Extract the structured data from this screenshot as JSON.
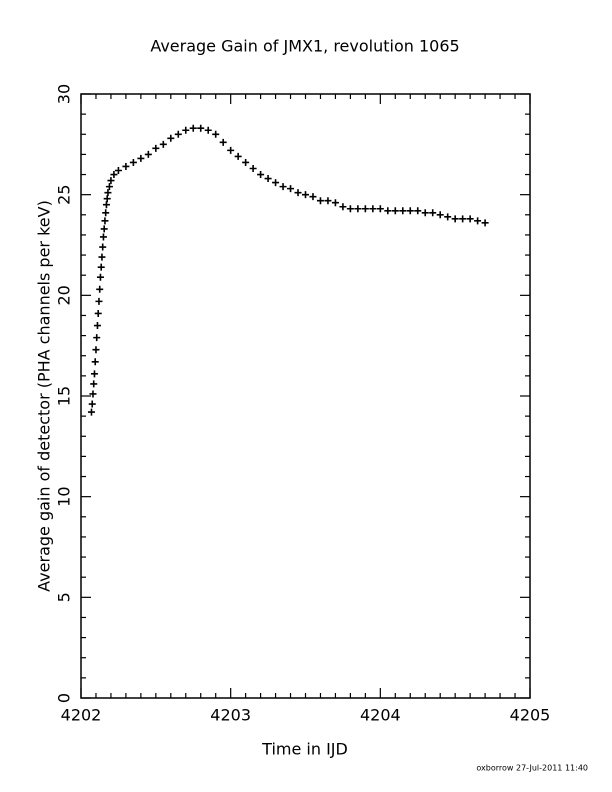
{
  "chart_data": {
    "type": "scatter",
    "title": "Average Gain of JMX1, revolution 1065",
    "xlabel": "Time in IJD",
    "ylabel": "Average gain of detector (PHA channels per keV)",
    "footer": "oxborrow 27-Jul-2011 11:40",
    "xlim": [
      4202,
      4205
    ],
    "xticks": [
      4202,
      4203,
      4204,
      4205
    ],
    "ylim": [
      0,
      30
    ],
    "yticks": [
      0,
      5,
      10,
      15,
      20,
      25,
      30
    ],
    "marker": "plus",
    "color": "#000000",
    "x": [
      4202.07,
      4202.075,
      4202.08,
      4202.085,
      4202.09,
      4202.095,
      4202.1,
      4202.105,
      4202.11,
      4202.115,
      4202.12,
      4202.125,
      4202.13,
      4202.135,
      4202.14,
      4202.145,
      4202.15,
      4202.155,
      4202.16,
      4202.165,
      4202.17,
      4202.175,
      4202.18,
      4202.19,
      4202.2,
      4202.22,
      4202.25,
      4202.3,
      4202.35,
      4202.4,
      4202.45,
      4202.5,
      4202.55,
      4202.6,
      4202.65,
      4202.7,
      4202.75,
      4202.8,
      4202.85,
      4202.9,
      4202.95,
      4203.0,
      4203.05,
      4203.1,
      4203.15,
      4203.2,
      4203.25,
      4203.3,
      4203.35,
      4203.4,
      4203.45,
      4203.5,
      4203.55,
      4203.6,
      4203.65,
      4203.7,
      4203.75,
      4203.8,
      4203.85,
      4203.9,
      4203.95,
      4204.0,
      4204.05,
      4204.1,
      4204.15,
      4204.2,
      4204.25,
      4204.3,
      4204.35,
      4204.4,
      4204.45,
      4204.5,
      4204.55,
      4204.6,
      4204.65,
      4204.7
    ],
    "values": [
      14.2,
      14.6,
      15.1,
      15.6,
      16.1,
      16.7,
      17.3,
      17.9,
      18.5,
      19.1,
      19.7,
      20.3,
      20.9,
      21.4,
      21.9,
      22.4,
      22.9,
      23.3,
      23.7,
      24.1,
      24.5,
      24.8,
      25.1,
      25.4,
      25.7,
      26.0,
      26.2,
      26.4,
      26.6,
      26.8,
      27.0,
      27.3,
      27.5,
      27.8,
      28.0,
      28.2,
      28.3,
      28.3,
      28.2,
      28.0,
      27.6,
      27.2,
      26.9,
      26.6,
      26.3,
      26.0,
      25.8,
      25.6,
      25.4,
      25.3,
      25.1,
      25.0,
      24.9,
      24.7,
      24.7,
      24.6,
      24.4,
      24.3,
      24.3,
      24.3,
      24.3,
      24.3,
      24.2,
      24.2,
      24.2,
      24.2,
      24.2,
      24.1,
      24.1,
      24.0,
      23.9,
      23.8,
      23.8,
      23.8,
      23.7,
      23.6
    ]
  }
}
